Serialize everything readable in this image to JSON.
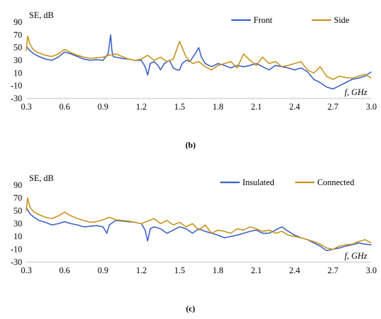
{
  "chart_data": [
    {
      "type": "line",
      "panel_label": "(b)",
      "ylabel": "SE, dB",
      "xlabel": "f, GHz",
      "xlim": [
        0.3,
        3.0
      ],
      "ylim": [
        -30,
        90
      ],
      "xticks": [
        "0.3",
        "0.6",
        "0.9",
        "1.2",
        "1.5",
        "1.8",
        "2.1",
        "2.4",
        "2.7",
        "3.0"
      ],
      "yticks": [
        "90",
        "70",
        "50",
        "30",
        "10",
        "-10",
        "-30"
      ],
      "grid": false,
      "legend_position": "top-right",
      "series": [
        {
          "name": "Front",
          "color": "#3a5fc8",
          "x": [
            0.3,
            0.33,
            0.36,
            0.4,
            0.45,
            0.5,
            0.55,
            0.6,
            0.65,
            0.7,
            0.75,
            0.8,
            0.85,
            0.9,
            0.94,
            0.96,
            0.97,
            0.98,
            1.0,
            1.05,
            1.1,
            1.15,
            1.2,
            1.23,
            1.25,
            1.27,
            1.3,
            1.33,
            1.35,
            1.38,
            1.42,
            1.45,
            1.48,
            1.5,
            1.52,
            1.55,
            1.58,
            1.62,
            1.65,
            1.67,
            1.7,
            1.75,
            1.8,
            1.85,
            1.9,
            1.95,
            2.0,
            2.05,
            2.1,
            2.15,
            2.2,
            2.25,
            2.3,
            2.35,
            2.4,
            2.45,
            2.5,
            2.55,
            2.6,
            2.65,
            2.7,
            2.75,
            2.8,
            2.85,
            2.9,
            2.95,
            3.0
          ],
          "y": [
            52,
            45,
            40,
            36,
            32,
            30,
            35,
            43,
            40,
            36,
            32,
            30,
            31,
            30,
            40,
            70,
            45,
            36,
            35,
            33,
            32,
            30,
            30,
            20,
            7,
            25,
            28,
            22,
            15,
            25,
            30,
            18,
            15,
            15,
            25,
            30,
            28,
            40,
            50,
            35,
            25,
            20,
            25,
            22,
            18,
            22,
            20,
            22,
            25,
            20,
            15,
            22,
            20,
            18,
            15,
            18,
            12,
            0,
            -5,
            -12,
            -15,
            -10,
            -5,
            0,
            2,
            5,
            12
          ]
        },
        {
          "name": "Side",
          "color": "#c8921a",
          "x": [
            0.3,
            0.31,
            0.33,
            0.35,
            0.38,
            0.42,
            0.45,
            0.5,
            0.55,
            0.6,
            0.65,
            0.7,
            0.75,
            0.8,
            0.85,
            0.9,
            0.95,
            1.0,
            1.05,
            1.1,
            1.15,
            1.2,
            1.25,
            1.3,
            1.35,
            1.4,
            1.45,
            1.5,
            1.55,
            1.6,
            1.65,
            1.7,
            1.75,
            1.8,
            1.85,
            1.9,
            1.95,
            2.0,
            2.05,
            2.1,
            2.15,
            2.2,
            2.25,
            2.3,
            2.35,
            2.4,
            2.45,
            2.5,
            2.55,
            2.6,
            2.65,
            2.7,
            2.75,
            2.8,
            2.85,
            2.9,
            2.95,
            3.0
          ],
          "y": [
            45,
            68,
            55,
            48,
            43,
            40,
            38,
            36,
            40,
            47,
            42,
            38,
            35,
            33,
            34,
            35,
            38,
            40,
            36,
            32,
            30,
            32,
            38,
            30,
            35,
            28,
            32,
            60,
            35,
            25,
            28,
            20,
            15,
            22,
            25,
            28,
            18,
            40,
            30,
            22,
            35,
            25,
            28,
            20,
            22,
            25,
            28,
            15,
            10,
            20,
            5,
            0,
            5,
            3,
            2,
            5,
            8,
            2
          ]
        }
      ]
    },
    {
      "type": "line",
      "panel_label": "(c)",
      "ylabel": "SE, dB",
      "xlabel": "f, GHz",
      "xlim": [
        0.3,
        3.0
      ],
      "ylim": [
        -30,
        90
      ],
      "xticks": [
        "0.3",
        "0.6",
        "0.9",
        "1.2",
        "1.5",
        "1.8",
        "2.1",
        "2.4",
        "2.7",
        "3.0"
      ],
      "yticks": [
        "90",
        "70",
        "50",
        "30",
        "10",
        "-10",
        "-30"
      ],
      "grid": false,
      "legend_position": "top-right",
      "series": [
        {
          "name": "Insulated",
          "color": "#3a5fc8",
          "x": [
            0.3,
            0.33,
            0.36,
            0.4,
            0.45,
            0.5,
            0.55,
            0.6,
            0.65,
            0.7,
            0.75,
            0.8,
            0.85,
            0.9,
            0.93,
            0.95,
            1.0,
            1.05,
            1.1,
            1.15,
            1.2,
            1.23,
            1.25,
            1.27,
            1.3,
            1.35,
            1.4,
            1.45,
            1.5,
            1.55,
            1.6,
            1.65,
            1.7,
            1.75,
            1.8,
            1.85,
            1.9,
            1.95,
            2.0,
            2.05,
            2.1,
            2.15,
            2.2,
            2.25,
            2.3,
            2.35,
            2.4,
            2.45,
            2.5,
            2.55,
            2.6,
            2.65,
            2.7,
            2.75,
            2.8,
            2.85,
            2.9,
            2.95,
            3.0
          ],
          "y": [
            55,
            45,
            40,
            35,
            32,
            28,
            30,
            33,
            30,
            28,
            25,
            26,
            27,
            25,
            15,
            28,
            35,
            34,
            33,
            32,
            30,
            20,
            3,
            22,
            25,
            22,
            15,
            20,
            25,
            22,
            15,
            22,
            18,
            15,
            12,
            8,
            10,
            12,
            15,
            18,
            20,
            15,
            15,
            20,
            25,
            18,
            12,
            8,
            5,
            0,
            -5,
            -12,
            -10,
            -8,
            -5,
            -3,
            0,
            -2,
            -3
          ]
        },
        {
          "name": "Connected",
          "color": "#c8921a",
          "x": [
            0.3,
            0.31,
            0.33,
            0.36,
            0.4,
            0.45,
            0.5,
            0.55,
            0.6,
            0.65,
            0.7,
            0.75,
            0.8,
            0.85,
            0.9,
            0.95,
            1.0,
            1.05,
            1.1,
            1.15,
            1.2,
            1.25,
            1.3,
            1.35,
            1.4,
            1.45,
            1.5,
            1.55,
            1.6,
            1.65,
            1.7,
            1.75,
            1.8,
            1.85,
            1.9,
            1.95,
            2.0,
            2.05,
            2.1,
            2.15,
            2.2,
            2.25,
            2.3,
            2.35,
            2.4,
            2.45,
            2.5,
            2.55,
            2.6,
            2.65,
            2.7,
            2.75,
            2.8,
            2.85,
            2.9,
            2.95,
            3.0
          ],
          "y": [
            50,
            70,
            55,
            48,
            44,
            40,
            38,
            42,
            48,
            42,
            38,
            35,
            32,
            33,
            36,
            40,
            36,
            35,
            34,
            32,
            30,
            34,
            38,
            30,
            35,
            28,
            32,
            25,
            30,
            20,
            28,
            15,
            20,
            18,
            15,
            22,
            20,
            25,
            22,
            18,
            20,
            15,
            18,
            12,
            10,
            8,
            5,
            2,
            -2,
            -8,
            -10,
            -5,
            -3,
            -2,
            2,
            5,
            0
          ]
        }
      ]
    }
  ]
}
